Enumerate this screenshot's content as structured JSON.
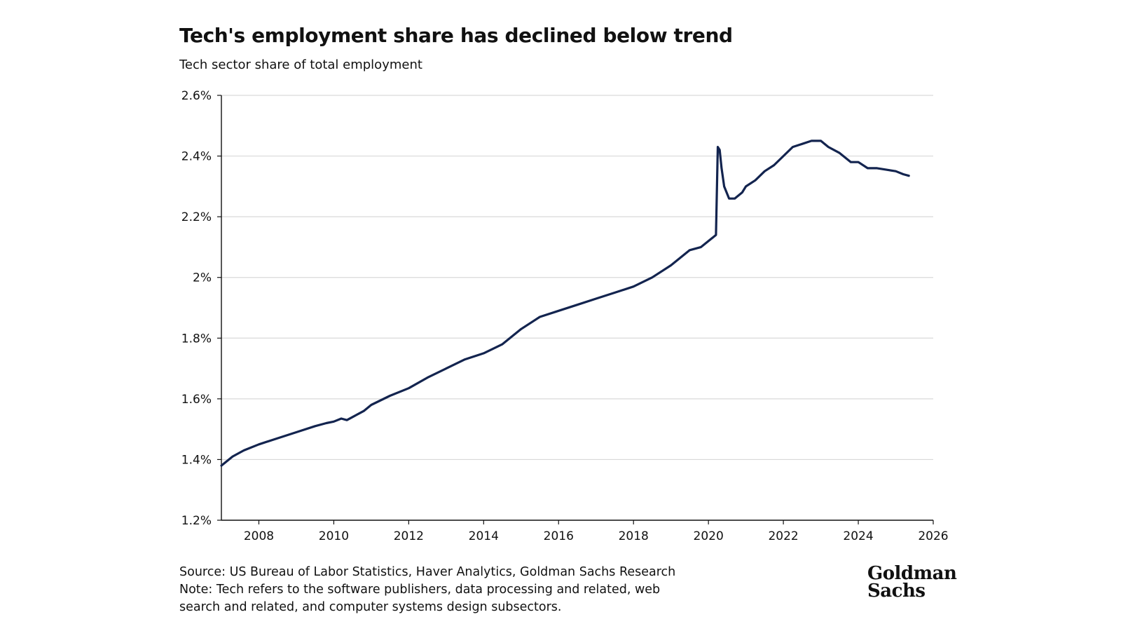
{
  "title": "Tech's employment share has declined below trend",
  "subtitle": "Tech sector share of total employment",
  "footer": {
    "source": "Source: US Bureau of Labor Statistics, Haver Analytics, Goldman Sachs Research",
    "note_line1": "Note: Tech refers to the software publishers, data processing and related, web",
    "note_line2": "search and related, and computer systems design subsectors."
  },
  "logo": {
    "line1": "Goldman",
    "line2": "Sachs"
  },
  "colors": {
    "line": "#13244f",
    "grid": "#d9d9d9",
    "axis": "#111111"
  },
  "chart_data": {
    "type": "line",
    "title": "Tech's employment share has declined below trend",
    "subtitle": "Tech sector share of total employment",
    "xlabel": "",
    "ylabel": "",
    "xlim": [
      2007.0,
      2026.0
    ],
    "ylim": [
      1.2,
      2.6
    ],
    "x_ticks": [
      2008,
      2010,
      2012,
      2014,
      2016,
      2018,
      2020,
      2022,
      2024,
      2026
    ],
    "y_ticks": [
      1.2,
      1.4,
      1.6,
      1.8,
      2.0,
      2.2,
      2.4,
      2.6
    ],
    "y_tick_labels": [
      "1.2%",
      "1.4%",
      "1.6%",
      "1.8%",
      "2%",
      "2.2%",
      "2.4%",
      "2.6%"
    ],
    "grid": "horizontal",
    "legend": "none",
    "series": [
      {
        "x": [
          2007.0,
          2007.3,
          2007.6,
          2008.0,
          2008.5,
          2009.0,
          2009.5,
          2009.8,
          2010.0,
          2010.2,
          2010.35,
          2010.5,
          2010.8,
          2011.0,
          2011.5,
          2012.0,
          2012.5,
          2013.0,
          2013.5,
          2014.0,
          2014.5,
          2015.0,
          2015.5,
          2016.0,
          2016.5,
          2017.0,
          2017.5,
          2018.0,
          2018.5,
          2019.0,
          2019.5,
          2019.8,
          2020.0,
          2020.2,
          2020.25,
          2020.3,
          2020.35,
          2020.42,
          2020.55,
          2020.7,
          2020.9,
          2021.0,
          2021.25,
          2021.5,
          2021.75,
          2022.0,
          2022.25,
          2022.5,
          2022.75,
          2023.0,
          2023.2,
          2023.5,
          2023.8,
          2024.0,
          2024.25,
          2024.5,
          2024.75,
          2025.0,
          2025.2,
          2025.35
        ],
        "y": [
          1.38,
          1.41,
          1.43,
          1.45,
          1.47,
          1.49,
          1.51,
          1.52,
          1.525,
          1.535,
          1.53,
          1.54,
          1.56,
          1.58,
          1.61,
          1.635,
          1.67,
          1.7,
          1.73,
          1.75,
          1.78,
          1.83,
          1.87,
          1.89,
          1.91,
          1.93,
          1.95,
          1.97,
          2.0,
          2.04,
          2.09,
          2.1,
          2.12,
          2.14,
          2.43,
          2.42,
          2.36,
          2.3,
          2.26,
          2.26,
          2.28,
          2.3,
          2.32,
          2.35,
          2.37,
          2.4,
          2.43,
          2.44,
          2.45,
          2.45,
          2.43,
          2.41,
          2.38,
          2.38,
          2.36,
          2.36,
          2.355,
          2.35,
          2.34,
          2.335
        ]
      }
    ]
  }
}
